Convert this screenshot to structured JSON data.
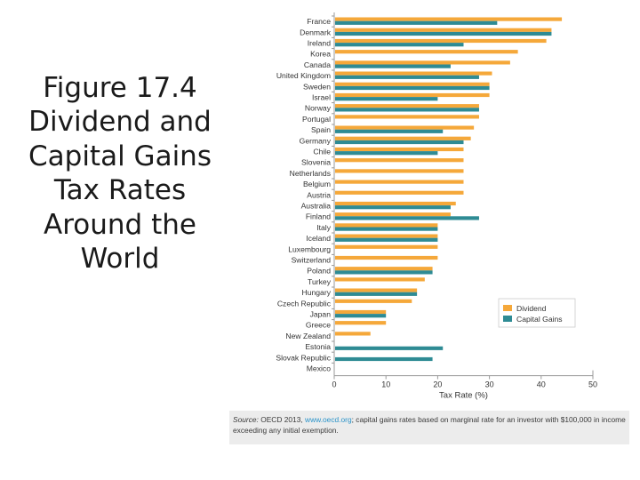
{
  "slide": {
    "title_lines": [
      "Figure 17.4",
      "Dividend and",
      "Capital Gains",
      "Tax Rates",
      "Around the",
      "World"
    ]
  },
  "source": {
    "label": "Source:",
    "prefix": "OECD 2013,",
    "link": "www.oecd.org",
    "text": "; capital gains rates based on marginal rate for an investor with $100,000 in income exceeding any initial exemption."
  },
  "colors": {
    "dividend": "#f5a83a",
    "capital_gains": "#2e8b94",
    "axis": "#999999",
    "text": "#333333"
  },
  "chart_data": {
    "type": "bar",
    "orientation": "horizontal",
    "title": "",
    "xlabel": "Tax Rate (%)",
    "ylabel": "",
    "xlim": [
      0,
      50
    ],
    "xticks": [
      0,
      10,
      20,
      30,
      40,
      50
    ],
    "legend_position": "right",
    "categories": [
      "France",
      "Denmark",
      "Ireland",
      "Korea",
      "Canada",
      "United Kingdom",
      "Sweden",
      "Israel",
      "Norway",
      "Portugal",
      "Spain",
      "Germany",
      "Chile",
      "Slovenia",
      "Netherlands",
      "Belgium",
      "Austria",
      "Australia",
      "Finland",
      "Italy",
      "Iceland",
      "Luxembourg",
      "Switzerland",
      "Poland",
      "Turkey",
      "Hungary",
      "Czech Republic",
      "Japan",
      "Greece",
      "New Zealand",
      "Estonia",
      "Slovak Republic",
      "Mexico"
    ],
    "series": [
      {
        "name": "Dividend",
        "values": [
          44,
          42,
          41,
          35.5,
          34,
          30.5,
          30,
          30,
          28,
          28,
          27,
          26.4,
          25,
          25,
          25,
          25,
          25,
          23.5,
          22.5,
          20,
          20,
          20,
          20,
          19,
          17.5,
          16,
          15,
          10,
          10,
          7,
          0,
          0,
          0
        ]
      },
      {
        "name": "Capital Gains",
        "values": [
          31.5,
          42,
          25,
          0,
          22.5,
          28,
          30,
          20,
          28,
          0,
          21,
          25,
          20,
          0,
          0,
          0,
          0,
          22.5,
          28,
          20,
          20,
          0,
          0,
          19,
          0,
          16,
          0,
          10,
          0,
          0,
          21,
          19,
          0
        ]
      }
    ]
  }
}
